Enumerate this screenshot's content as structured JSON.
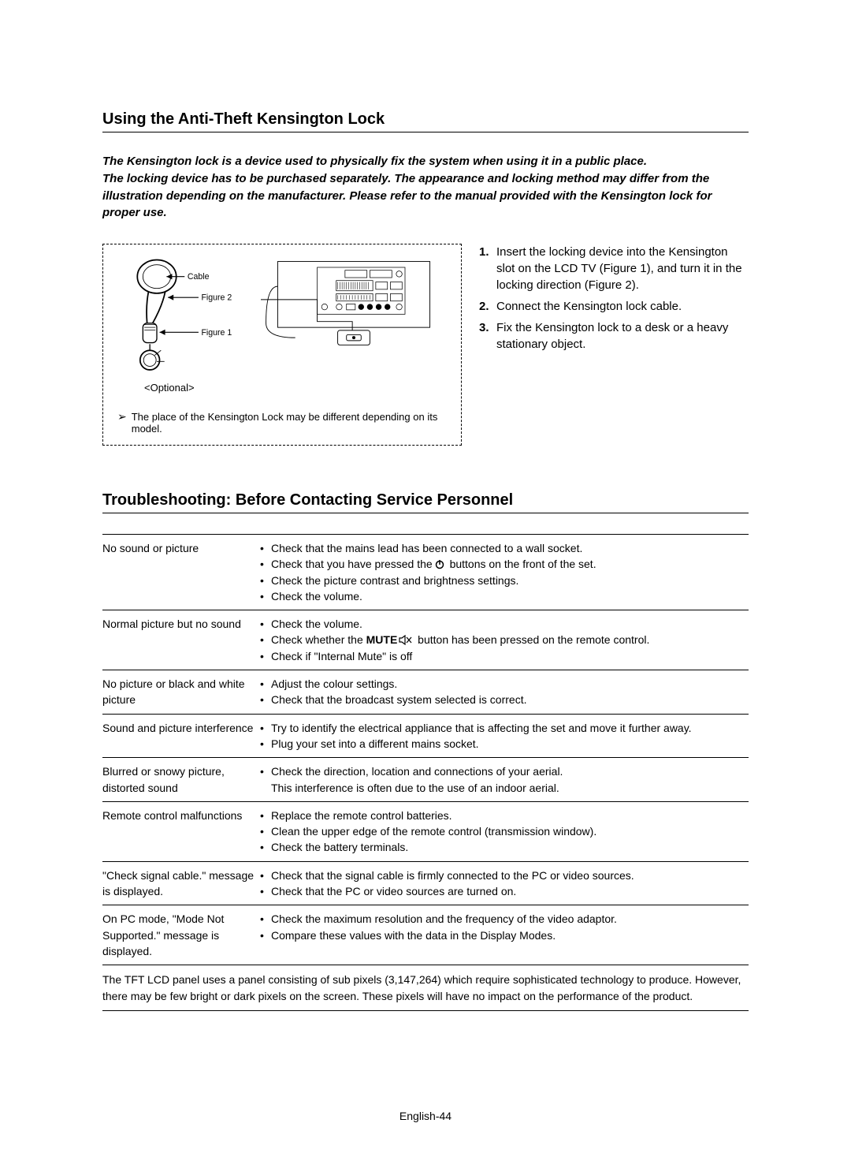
{
  "colors": {
    "text": "#000000",
    "page_bg": "#ffffff",
    "rule": "#000000"
  },
  "section1": {
    "title": "Using the Anti-Theft Kensington Lock",
    "intro_line1": "The Kensington lock is a device used to physically fix the system when using it in a public place.",
    "intro_line2": "The locking device has to be purchased separately. The appearance and locking method may differ from the illustration depending on the manufacturer. Please refer to the manual provided with the Kensington lock for proper use.",
    "diagram": {
      "cable_label": "Cable",
      "figure2_label": "Figure 2",
      "figure1_label": "Figure 1",
      "optional_label": "<Optional>",
      "note": "The place of the  Kensington Lock may be different depending on its model."
    },
    "steps": [
      "Insert the locking device into the Kensington slot on the LCD TV (Figure 1), and turn it in the locking direction (Figure 2).",
      "Connect the Kensington lock cable.",
      "Fix the Kensington lock to a desk or a heavy stationary object."
    ]
  },
  "section2": {
    "title": "Troubleshooting: Before Contacting Service Personnel",
    "rows": [
      {
        "problem": "No sound or picture",
        "solutions": [
          {
            "text": "Check that the mains lead has been connected to a wall socket."
          },
          {
            "pre": "Check that you have pressed the",
            "icon": "power",
            "post": " buttons on the front of the set."
          },
          {
            "text": "Check the picture contrast and brightness settings."
          },
          {
            "text": "Check the volume."
          }
        ]
      },
      {
        "problem": "Normal picture but no sound",
        "solutions": [
          {
            "text": "Check the volume."
          },
          {
            "pre": "Check whether the ",
            "bold": "MUTE",
            "icon": "mute",
            "post": " button has been pressed on the remote control."
          },
          {
            "text": "Check if \"Internal Mute\" is off"
          }
        ]
      },
      {
        "problem": "No picture or black and white picture",
        "solutions": [
          {
            "text": "Adjust the colour settings."
          },
          {
            "text": "Check that the broadcast system selected is correct."
          }
        ]
      },
      {
        "problem": "Sound and picture interference",
        "solutions": [
          {
            "text": "Try to identify the electrical appliance that is affecting the set and move it further away."
          },
          {
            "text": "Plug your set into a different mains socket."
          }
        ]
      },
      {
        "problem": "Blurred or snowy picture, distorted sound",
        "solutions": [
          {
            "text": "Check the direction, location and connections of your aerial."
          },
          {
            "nobullet": true,
            "text": "This interference is often due to the use of an indoor aerial."
          }
        ]
      },
      {
        "problem": "Remote control malfunctions",
        "solutions": [
          {
            "text": "Replace the remote control batteries."
          },
          {
            "text": "Clean the upper edge of the remote control (transmission window)."
          },
          {
            "text": "Check the battery terminals."
          }
        ]
      },
      {
        "problem": "\"Check signal cable.\" message is displayed.",
        "solutions": [
          {
            "text": "Check that the signal cable is firmly connected to the PC or video sources."
          },
          {
            "text": "Check that the PC or video sources are turned on."
          }
        ]
      },
      {
        "problem": "On PC mode, \"Mode Not Supported.\" message is displayed.",
        "solutions": [
          {
            "text": "Check the maximum resolution and the frequency of the video adaptor."
          },
          {
            "text": "Compare these values with the data in the Display Modes."
          }
        ]
      }
    ],
    "footnote": "The TFT LCD panel uses a panel consisting of sub pixels (3,147,264) which require sophisticated technology to produce. However, there may be few bright or dark pixels on the screen. These pixels will have no impact on the performance of the product."
  },
  "page_number": "English-44"
}
